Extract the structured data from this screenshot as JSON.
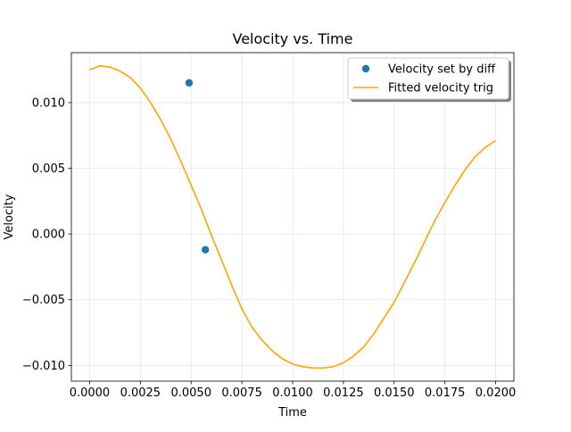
{
  "chart_data": {
    "type": "line",
    "title": "Velocity vs. Time",
    "xlabel": "Time",
    "ylabel": "Velocity",
    "xlim": [
      -0.0009,
      0.0209
    ],
    "ylim": [
      -0.0112,
      0.0138
    ],
    "grid": true,
    "legend_position": "top-right",
    "xticks": [
      0.0,
      0.0025,
      0.005,
      0.0075,
      0.01,
      0.0125,
      0.015,
      0.0175,
      0.02
    ],
    "xtick_labels": [
      "0.0000",
      "0.0025",
      "0.0050",
      "0.0075",
      "0.0100",
      "0.0125",
      "0.0150",
      "0.0175",
      "0.0200"
    ],
    "yticks": [
      -0.01,
      -0.005,
      0.0,
      0.005,
      0.01
    ],
    "ytick_labels": [
      "−0.010",
      "−0.005",
      "0.000",
      "0.005",
      "0.010"
    ],
    "series": [
      {
        "name": "Velocity set by diff",
        "kind": "scatter",
        "color": "#1f77b4",
        "x": [
          0.0049,
          0.0057
        ],
        "y": [
          0.0115,
          -0.0012
        ]
      },
      {
        "name": "Fitted velocity trig",
        "kind": "line",
        "color": "#ffa500",
        "x": [
          0.0,
          0.0005,
          0.001,
          0.0015,
          0.002,
          0.0025,
          0.003,
          0.0035,
          0.004,
          0.0045,
          0.005,
          0.0055,
          0.006,
          0.0065,
          0.007,
          0.0075,
          0.008,
          0.0085,
          0.009,
          0.0095,
          0.01,
          0.0105,
          0.011,
          0.0115,
          0.012,
          0.0125,
          0.013,
          0.0135,
          0.014,
          0.0145,
          0.015,
          0.0155,
          0.016,
          0.0165,
          0.017,
          0.0175,
          0.018,
          0.0185,
          0.019,
          0.0195,
          0.02
        ],
        "y": [
          0.0125,
          0.0128,
          0.0127,
          0.0124,
          0.0119,
          0.0111,
          0.01,
          0.0087,
          0.0072,
          0.0055,
          0.0037,
          0.0019,
          -0.0001,
          -0.002,
          -0.0039,
          -0.0057,
          -0.0071,
          -0.0081,
          -0.0089,
          -0.0095,
          -0.0099,
          -0.0101,
          -0.0102,
          -0.0102,
          -0.0101,
          -0.0098,
          -0.0093,
          -0.0086,
          -0.0076,
          -0.0064,
          -0.0052,
          -0.0037,
          -0.0022,
          -0.0006,
          0.001,
          0.0024,
          0.0037,
          0.0049,
          0.0059,
          0.0066,
          0.0071
        ]
      }
    ]
  }
}
